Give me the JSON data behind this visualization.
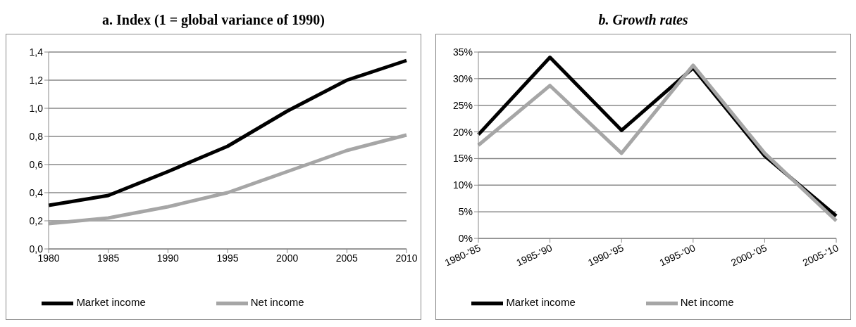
{
  "chart_data": [
    {
      "type": "line",
      "title": "a. Index (1 = global variance of 1990)",
      "categories": [
        "1980",
        "1985",
        "1990",
        "1995",
        "2000",
        "2005",
        "2010"
      ],
      "series": [
        {
          "name": "Market income",
          "color": "#000000",
          "values": [
            0.31,
            0.38,
            0.55,
            0.73,
            0.98,
            1.2,
            1.34
          ]
        },
        {
          "name": "Net income",
          "color": "#a6a6a6",
          "values": [
            0.18,
            0.22,
            0.3,
            0.4,
            0.55,
            0.7,
            0.81
          ]
        }
      ],
      "ylim": [
        0,
        1.4
      ],
      "yticks": [
        {
          "value": 0,
          "label": "0,0"
        },
        {
          "value": 0.2,
          "label": "0,2"
        },
        {
          "value": 0.4,
          "label": "0,4"
        },
        {
          "value": 0.6,
          "label": "0,6"
        },
        {
          "value": 0.8,
          "label": "0,8"
        },
        {
          "value": 1,
          "label": "1,0"
        },
        {
          "value": 1.2,
          "label": "1,2"
        },
        {
          "value": 1.4,
          "label": "1,4"
        }
      ],
      "grid": "y",
      "legend": "bottom",
      "marker": "none",
      "line_style": "solid"
    },
    {
      "type": "line",
      "title": "b. Growth rates",
      "categories": [
        "1980-'85",
        "1985-'90",
        "1990-'95",
        "1995-'00",
        "2000-'05",
        "2005-'10"
      ],
      "series": [
        {
          "name": "Market income",
          "color": "#000000",
          "values": [
            19.5,
            34,
            20.3,
            32,
            15.5,
            4.2
          ]
        },
        {
          "name": "Net income",
          "color": "#a6a6a6",
          "values": [
            17.5,
            28.7,
            16,
            32.5,
            16,
            3.3
          ]
        }
      ],
      "ylim": [
        0,
        35
      ],
      "yticks": [
        {
          "value": 0,
          "label": "0%"
        },
        {
          "value": 5,
          "label": "5%"
        },
        {
          "value": 10,
          "label": "10%"
        },
        {
          "value": 15,
          "label": "15%"
        },
        {
          "value": 20,
          "label": "20%"
        },
        {
          "value": 25,
          "label": "25%"
        },
        {
          "value": 30,
          "label": "30%"
        },
        {
          "value": 35,
          "label": "35%"
        }
      ],
      "grid": "y",
      "legend": "bottom",
      "marker": "none",
      "line_style": "solid"
    }
  ]
}
